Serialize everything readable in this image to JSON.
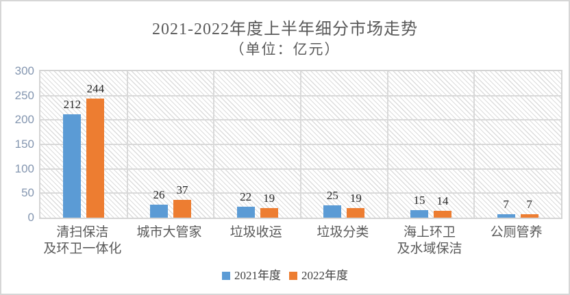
{
  "chart_data": {
    "type": "bar",
    "title": "2021-2022年度上半年细分市场走势",
    "subtitle": "（单位：亿元）",
    "unit_label": "亿元",
    "categories": [
      "清扫保洁\n及环卫一体化",
      "城市大管家",
      "垃圾收运",
      "垃圾分类",
      "海上环卫\n及水域保洁",
      "公厕管养"
    ],
    "series": [
      {
        "name": "2021年度",
        "color": "#5B9BD5",
        "values": [
          212,
          26,
          22,
          25,
          15,
          7
        ]
      },
      {
        "name": "2022年度",
        "color": "#ED7D31",
        "values": [
          244,
          37,
          19,
          19,
          14,
          7
        ]
      }
    ],
    "ylim": [
      0,
      300
    ],
    "yticks": [
      0,
      50,
      100,
      150,
      200,
      250,
      300
    ],
    "grid": true,
    "legend_position": "bottom",
    "plot_background": "diagonal-hatch"
  },
  "colors": {
    "series_2021": "#5B9BD5",
    "series_2022": "#ED7D31",
    "title_text": "#595959",
    "axis_tick_text": "#8496B0",
    "category_text": "#595959",
    "data_label_text": "#262626",
    "gridline": "#D9D9D9",
    "hatch_line": "#DCDCDC",
    "frame_border": "#D6D6D6"
  }
}
